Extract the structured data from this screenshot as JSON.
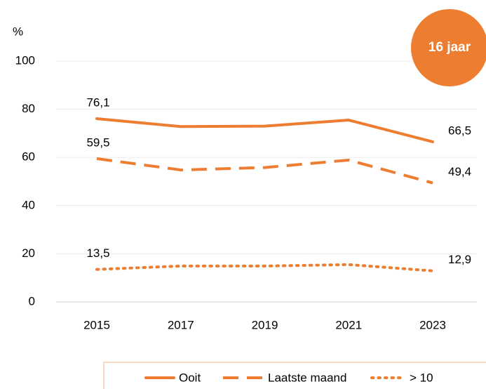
{
  "chart_data": {
    "type": "line",
    "y_label": "%",
    "badge": "16 jaar",
    "categories": [
      "2015",
      "2017",
      "2019",
      "2021",
      "2023"
    ],
    "series": [
      {
        "name": "Ooit",
        "color": "#ED7D31",
        "style": "solid",
        "values": [
          76.1,
          72.8,
          73.0,
          75.5,
          66.5
        ],
        "value_labels": [
          "76,1",
          null,
          null,
          null,
          "66,5"
        ]
      },
      {
        "name": "Laatste maand",
        "color": "#ED7D31",
        "style": "dashed",
        "values": [
          59.5,
          54.8,
          55.8,
          58.9,
          49.4
        ],
        "value_labels": [
          "59,5",
          null,
          null,
          null,
          "49,4"
        ]
      },
      {
        "name": "> 10",
        "color": "#ED7D31",
        "style": "dotted",
        "values": [
          13.5,
          14.9,
          14.9,
          15.5,
          12.9
        ],
        "value_labels": [
          "13,5",
          null,
          null,
          null,
          "12,9"
        ]
      }
    ],
    "ylim": [
      0,
      100
    ],
    "yticks": [
      0,
      20,
      40,
      60,
      80,
      100
    ],
    "grid": true,
    "legend": "bottom"
  }
}
